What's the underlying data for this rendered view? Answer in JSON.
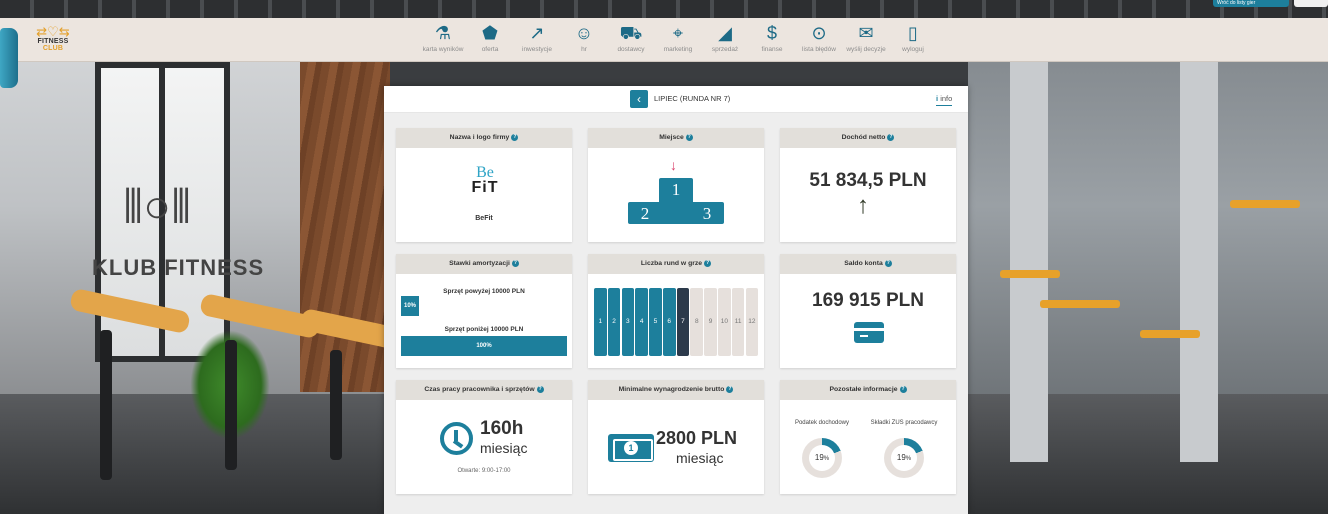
{
  "app": {
    "logo_text": "FITNESS",
    "logo_text_accent": "CLUB",
    "top_tab": "Wróć do listy gier"
  },
  "nav": [
    {
      "label": "karta wyników",
      "icon": "flask-icon"
    },
    {
      "label": "oferta",
      "icon": "tag-icon"
    },
    {
      "label": "inwestycje",
      "icon": "chart-up-icon"
    },
    {
      "label": "hr",
      "icon": "people-icon"
    },
    {
      "label": "dostawcy",
      "icon": "truck-icon"
    },
    {
      "label": "marketing",
      "icon": "target-icon"
    },
    {
      "label": "sprzedaż",
      "icon": "chart-bar-icon"
    },
    {
      "label": "finanse",
      "icon": "dollar-icon"
    },
    {
      "label": "lista błędów",
      "icon": "bug-icon"
    },
    {
      "label": "wyślij decyzje",
      "icon": "envelope-icon"
    },
    {
      "label": "wyloguj",
      "icon": "door-icon"
    }
  ],
  "panel": {
    "round_title": "LIPIEC (RUNDA NR 7)",
    "info_label": "info",
    "back_icon": "chevron-left-icon"
  },
  "cards": {
    "company": {
      "title": "Nazwa i logo firmy",
      "logo_top": "Be",
      "logo_bottom": "FiT",
      "name": "BeFit"
    },
    "place": {
      "title": "Miejsce",
      "first": "1",
      "second": "2",
      "third": "3",
      "position": 1
    },
    "net_income": {
      "title": "Dochód netto",
      "value": "51 834,5 PLN",
      "trend": "up"
    },
    "amortization": {
      "title": "Stawki amortyzacji",
      "above_label": "Sprzęt powyżej 10000 PLN",
      "above_value": "10%",
      "above_fraction": 0.1,
      "below_label": "Sprzęt poniżej 10000 PLN",
      "below_value": "100%",
      "below_fraction": 1.0
    },
    "rounds": {
      "title": "Liczba rund w grze",
      "items": [
        "1",
        "2",
        "3",
        "4",
        "5",
        "6",
        "7",
        "8",
        "9",
        "10",
        "11",
        "12"
      ],
      "current": 7
    },
    "balance": {
      "title": "Saldo konta",
      "value": "169 915 PLN"
    },
    "work_time": {
      "title": "Czas pracy pracownika i sprzętów",
      "hours": "160h",
      "unit": "miesiąc",
      "open": "Otwarte: 9:00-17:00"
    },
    "min_wage": {
      "title": "Minimalne wynagrodzenie brutto",
      "value": "2800 PLN",
      "unit": "miesiąc"
    },
    "other": {
      "title": "Pozostałe informacje",
      "tax_label": "Podatek dochodowy",
      "tax_value": "19",
      "tax_fraction": 0.19,
      "zus_label": "Składki ZUS pracodawcy",
      "zus_value": "19",
      "zus_fraction": 0.19,
      "percent": "%"
    }
  },
  "background": {
    "wall_text": "KLUB FITNESS"
  },
  "colors": {
    "accent": "#1d7f9c",
    "current_round": "#2c3a4b",
    "arrow": "#d9426b",
    "brand": "#e3a02c"
  }
}
